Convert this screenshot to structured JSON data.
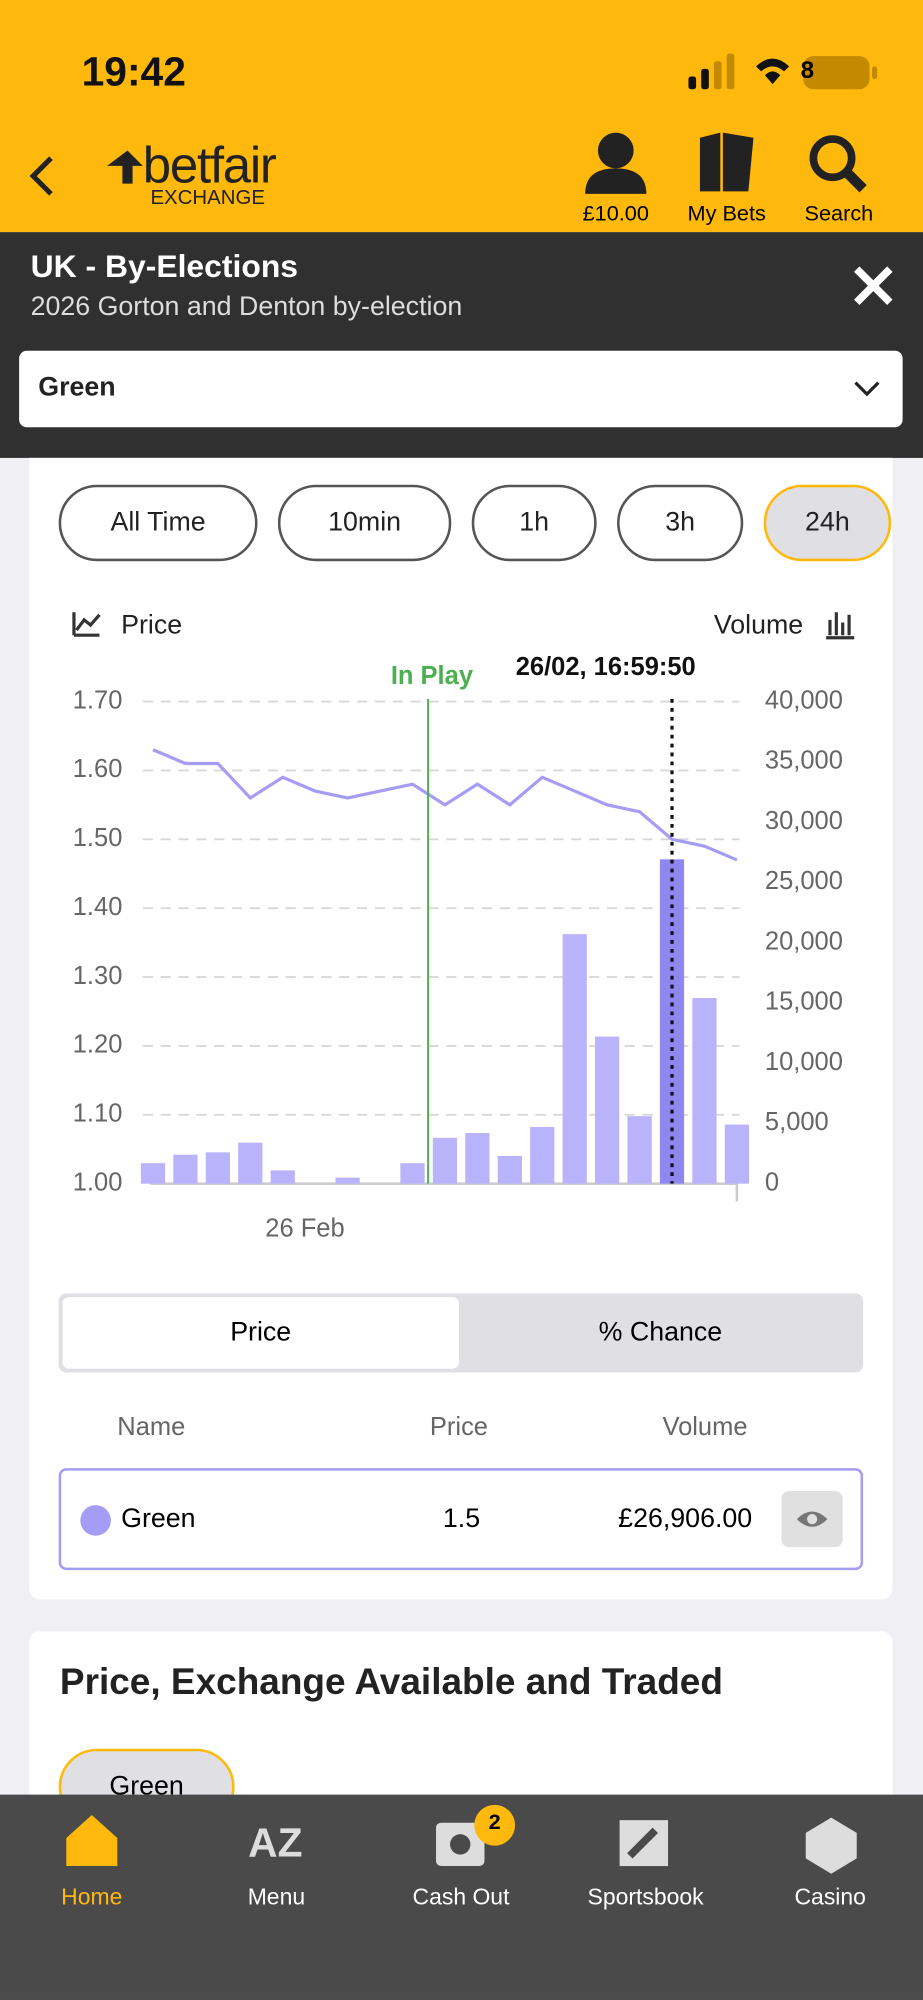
{
  "status": {
    "time": "19:42",
    "battery": "8"
  },
  "header": {
    "logo": "betfair",
    "logo_sub": "EXCHANGE",
    "items": [
      "£10.00",
      "My Bets",
      "Search"
    ]
  },
  "market": {
    "title": "UK - By-Elections",
    "subtitle": "2026 Gorton and Denton by-election"
  },
  "selector": "Green",
  "time_ranges": {
    "options": [
      "All Time",
      "10min",
      "1h",
      "3h",
      "24h"
    ],
    "selected": 4
  },
  "chart_data": {
    "type": "combo",
    "legend": [
      "Price",
      "Volume"
    ],
    "categories": [
      null,
      null,
      null,
      null,
      null,
      "26 Feb",
      null,
      null,
      null,
      null,
      null,
      null,
      null,
      null,
      null,
      null,
      null,
      null,
      null
    ],
    "series": [
      {
        "name": "Price",
        "type": "line",
        "color": "#a59df5",
        "values": [
          1.63,
          1.61,
          1.61,
          1.56,
          1.59,
          1.57,
          1.56,
          1.57,
          1.58,
          1.55,
          1.58,
          1.55,
          1.59,
          1.57,
          1.55,
          1.54,
          1.5,
          1.49,
          1.47
        ]
      },
      {
        "name": "Volume",
        "type": "bar",
        "axis": "y2",
        "color": "#b8b3fa",
        "highlight_color": "#8f86f0",
        "values": [
          1700,
          2400,
          2600,
          3400,
          1100,
          0,
          500,
          0,
          1700,
          3800,
          4200,
          2300,
          4700,
          20700,
          12200,
          5600,
          26906,
          15400,
          4900
        ]
      }
    ],
    "selected_index": 16,
    "selected_label": "26/02, 16:59:50",
    "in_play_label": "In Play",
    "in_play_color": "#4caf50",
    "ylim": [
      1.0,
      1.7
    ],
    "yticks": [
      {
        "value": 1.0,
        "label": "1.00"
      },
      {
        "value": 1.1,
        "label": "1.10"
      },
      {
        "value": 1.2,
        "label": "1.20"
      },
      {
        "value": 1.3,
        "label": "1.30"
      },
      {
        "value": 1.4,
        "label": "1.40"
      },
      {
        "value": 1.5,
        "label": "1.50"
      },
      {
        "value": 1.6,
        "label": "1.60"
      },
      {
        "value": 1.7,
        "label": "1.70"
      }
    ],
    "y2lim": [
      0,
      40000
    ],
    "y2ticks": [
      0,
      {
        "value": 5000,
        "label": "5,000"
      },
      {
        "value": 10000,
        "label": "10,000"
      },
      {
        "value": 15000,
        "label": "15,000"
      },
      {
        "value": 20000,
        "label": "20,000"
      },
      {
        "value": 25000,
        "label": "25,000"
      },
      {
        "value": 30000,
        "label": "30,000"
      },
      {
        "value": 35000,
        "label": "35,000"
      },
      {
        "value": 40000,
        "label": "40,000"
      }
    ],
    "grid": true
  },
  "toggle": {
    "options": [
      "Price",
      "% Chance"
    ],
    "selected": 0
  },
  "table": {
    "headers": [
      "Name",
      "Price",
      "Volume"
    ],
    "rows": [
      [
        "Green",
        "1.5",
        "£26,906.00"
      ]
    ]
  },
  "section": {
    "title": "Price, Exchange Available and Traded",
    "chip": "Green"
  },
  "bottom_nav": {
    "items": [
      "Home",
      "Menu",
      "Cash Out",
      "Sportsbook",
      "Casino"
    ],
    "badge": "2"
  }
}
